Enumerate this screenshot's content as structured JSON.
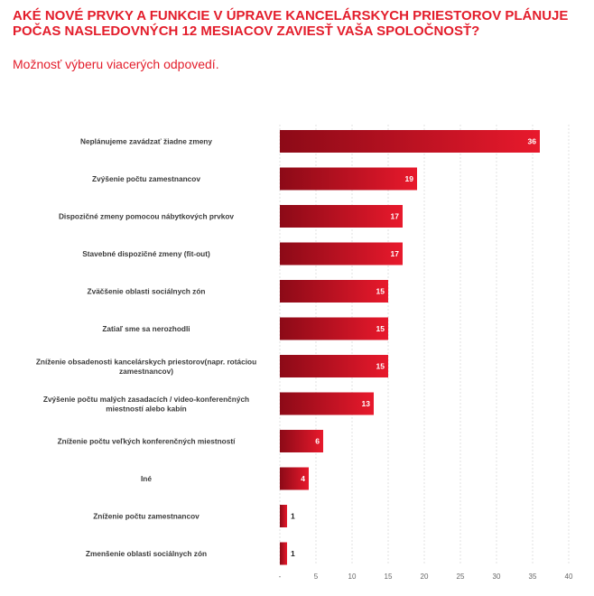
{
  "header": {
    "title": "AKÉ NOVÉ PRVKY A FUNKCIE V ÚPRAVE KANCELÁRSKYCH PRIESTOROV PLÁNUJE POČAS NASLEDOVNÝCH 12 MESIACOV ZAVIESŤ VAŠA SPOLOČNOSŤ?",
    "subtitle": "Možnosť výberu viacerých odpovedí."
  },
  "colors": {
    "accent": "#e31d2b",
    "bar_dark": "#8c0a17",
    "bar_light": "#e8192c"
  },
  "chart_data": {
    "type": "bar",
    "orientation": "horizontal",
    "categories": [
      "Neplánujeme zavádzať žiadne zmeny",
      "Zvýšenie počtu zamestnancov",
      "Dispozičné zmeny pomocou nábytkových prvkov",
      "Stavebné dispozičné zmeny (fit-out)",
      "Zväčšenie oblasti sociálnych zón",
      "Zatiaľ sme sa nerozhodli",
      "Zníženie obsadenosti kancelárskych priestorov(napr. rotáciou zamestnancov)",
      "Zvýšenie počtu malých zasadacích / video-konferenčných miestností alebo kabín",
      "Zníženie počtu veľkých konferenčných miestností",
      "Iné",
      "Zníženie počtu zamestnancov",
      "Zmenšenie oblasti sociálnych zón"
    ],
    "values": [
      36,
      19,
      17,
      17,
      15,
      15,
      15,
      13,
      6,
      4,
      1,
      1
    ],
    "xlim": [
      0,
      40
    ],
    "xticks": [
      "-",
      "5",
      "10",
      "15",
      "20",
      "25",
      "30",
      "35",
      "40"
    ],
    "grid": true,
    "legend": "none"
  }
}
